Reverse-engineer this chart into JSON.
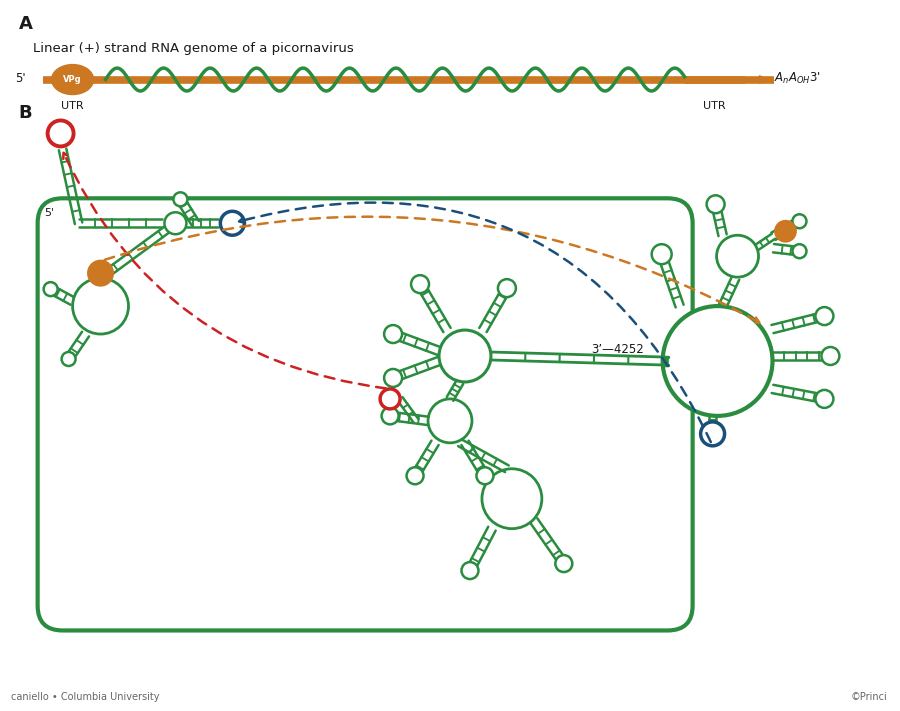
{
  "title_a": "A",
  "title_b": "B",
  "subtitle": "Linear (+) strand RNA genome of a picornavirus",
  "label_4252": "3’—4252",
  "green": "#2a8c3f",
  "orange": "#cc7722",
  "dark_red": "#cc2222",
  "blue": "#1a4f7a",
  "bg": "#ffffff",
  "text_color": "#1a1a1a",
  "footer_left": "caniello • Columbia University",
  "footer_right": "©Princi"
}
